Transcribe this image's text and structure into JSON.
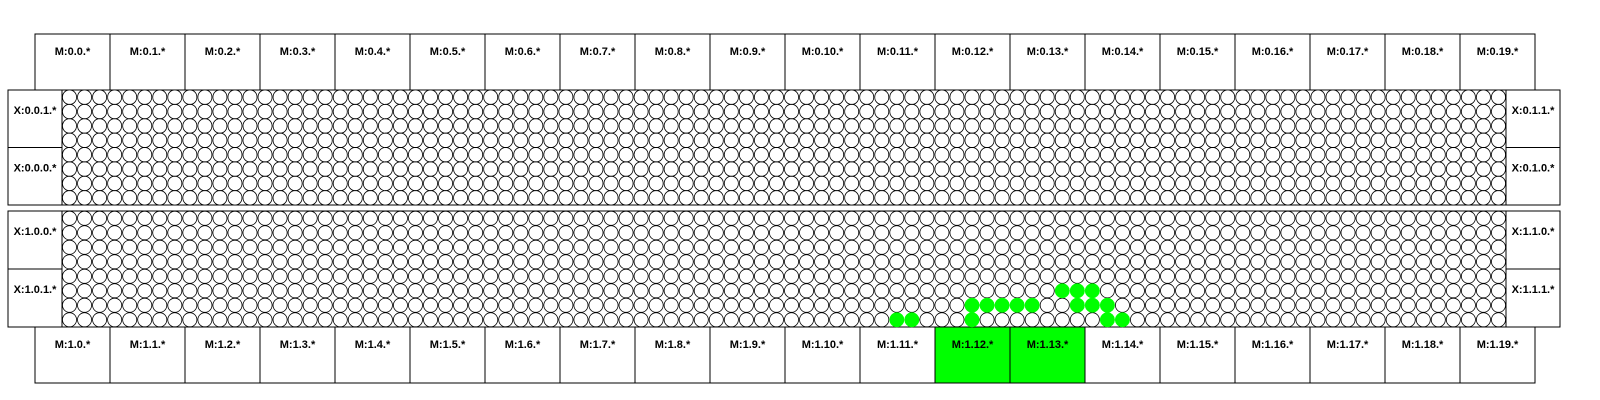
{
  "top_memory_labels": [
    "M:0.0.*",
    "M:0.1.*",
    "M:0.2.*",
    "M:0.3.*",
    "M:0.4.*",
    "M:0.5.*",
    "M:0.6.*",
    "M:0.7.*",
    "M:0.8.*",
    "M:0.9.*",
    "M:0.10.*",
    "M:0.11.*",
    "M:0.12.*",
    "M:0.13.*",
    "M:0.14.*",
    "M:0.15.*",
    "M:0.16.*",
    "M:0.17.*",
    "M:0.18.*",
    "M:0.19.*"
  ],
  "bottom_memory_labels": [
    "M:1.0.*",
    "M:1.1.*",
    "M:1.2.*",
    "M:1.3.*",
    "M:1.4.*",
    "M:1.5.*",
    "M:1.6.*",
    "M:1.7.*",
    "M:1.8.*",
    "M:1.9.*",
    "M:1.10.*",
    "M:1.11.*",
    "M:1.12.*",
    "M:1.13.*",
    "M:1.14.*",
    "M:1.15.*",
    "M:1.16.*",
    "M:1.17.*",
    "M:1.18.*",
    "M:1.19.*"
  ],
  "active_bottom_memory": [
    "M:1.12.*",
    "M:1.13.*"
  ],
  "io_blocks": [
    {
      "left": [
        "X:0.0.1.*",
        "X:0.0.0.*"
      ],
      "right": [
        "X:0.1.1.*",
        "X:0.1.0.*"
      ]
    },
    {
      "left": [
        "X:1.0.0.*",
        "X:1.0.1.*"
      ],
      "right": [
        "X:1.1.0.*",
        "X:1.1.1.*"
      ]
    }
  ],
  "grid": {
    "columns": 96,
    "rows_per_block": 8
  },
  "active_cells": {
    "block": 1,
    "cells": [
      [
        5,
        66
      ],
      [
        5,
        67
      ],
      [
        5,
        68
      ],
      [
        6,
        60
      ],
      [
        6,
        61
      ],
      [
        6,
        62
      ],
      [
        6,
        63
      ],
      [
        6,
        64
      ],
      [
        6,
        67
      ],
      [
        6,
        68
      ],
      [
        6,
        69
      ],
      [
        7,
        55
      ],
      [
        7,
        56
      ],
      [
        7,
        60
      ],
      [
        7,
        69
      ],
      [
        7,
        70
      ]
    ]
  },
  "colors": {
    "active": "#00ff00",
    "border": "#000000",
    "cell_fill": "#ffffff",
    "background": "#ffffff"
  }
}
